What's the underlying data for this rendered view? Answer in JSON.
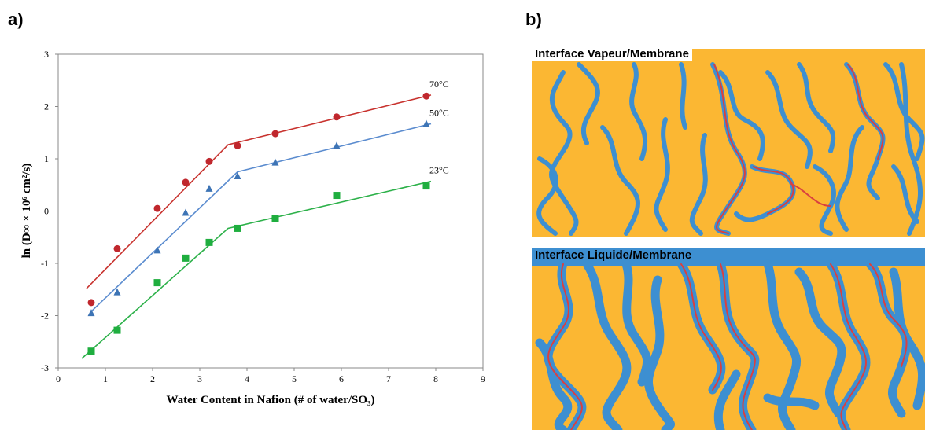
{
  "panels": {
    "a_label": "a)",
    "b_label": "b)",
    "interface_top": "Interface Vapeur/Membrane",
    "interface_bottom": "Interface Liquide/Membrane"
  },
  "colors": {
    "series_70": "#c0272d",
    "series_50": "#3d74b5",
    "series_23": "#1fae3f",
    "fit_70": "#c8322e",
    "fit_50": "#5b8ccf",
    "fit_23": "#2db14a",
    "membrane": "#fbb733",
    "channel": "#3d8fd1",
    "path": "#d94040"
  },
  "chart_data": {
    "type": "scatter",
    "xlabel": "Water Content in Nafion (# of water/SO₃)",
    "ylabel": "ln (D∞ × 10⁶ cm²/s)",
    "xlim": [
      0,
      9
    ],
    "ylim": [
      -3,
      3
    ],
    "xticks": [
      0,
      1,
      2,
      3,
      4,
      5,
      6,
      7,
      8,
      9
    ],
    "yticks": [
      -3,
      -2,
      -1,
      0,
      1,
      2,
      3
    ],
    "series": [
      {
        "name": "70°C",
        "marker": "circle",
        "x": [
          0.7,
          1.25,
          2.1,
          2.7,
          3.2,
          3.8,
          4.6,
          5.9,
          7.8
        ],
        "y": [
          -1.75,
          -0.72,
          0.05,
          0.55,
          0.95,
          1.25,
          1.48,
          1.8,
          2.2
        ],
        "fit": {
          "x": [
            0.6,
            3.6,
            7.9
          ],
          "y": [
            -1.48,
            1.27,
            2.22
          ]
        }
      },
      {
        "name": "50°C",
        "marker": "triangle",
        "x": [
          0.7,
          1.25,
          2.1,
          2.7,
          3.2,
          3.8,
          4.6,
          5.9,
          7.8
        ],
        "y": [
          -1.95,
          -1.55,
          -0.75,
          -0.03,
          0.43,
          0.67,
          0.93,
          1.25,
          1.67
        ],
        "fit": {
          "x": [
            0.7,
            3.8,
            7.9
          ],
          "y": [
            -1.92,
            0.75,
            1.67
          ]
        }
      },
      {
        "name": "23°C",
        "marker": "square",
        "x": [
          0.7,
          1.25,
          2.1,
          2.7,
          3.2,
          3.8,
          4.6,
          5.9,
          7.8
        ],
        "y": [
          -2.68,
          -2.28,
          -1.37,
          -0.9,
          -0.6,
          -0.33,
          -0.14,
          0.3,
          0.48
        ],
        "fit": {
          "x": [
            0.5,
            3.6,
            7.9
          ],
          "y": [
            -2.82,
            -0.33,
            0.57
          ]
        }
      }
    ]
  }
}
